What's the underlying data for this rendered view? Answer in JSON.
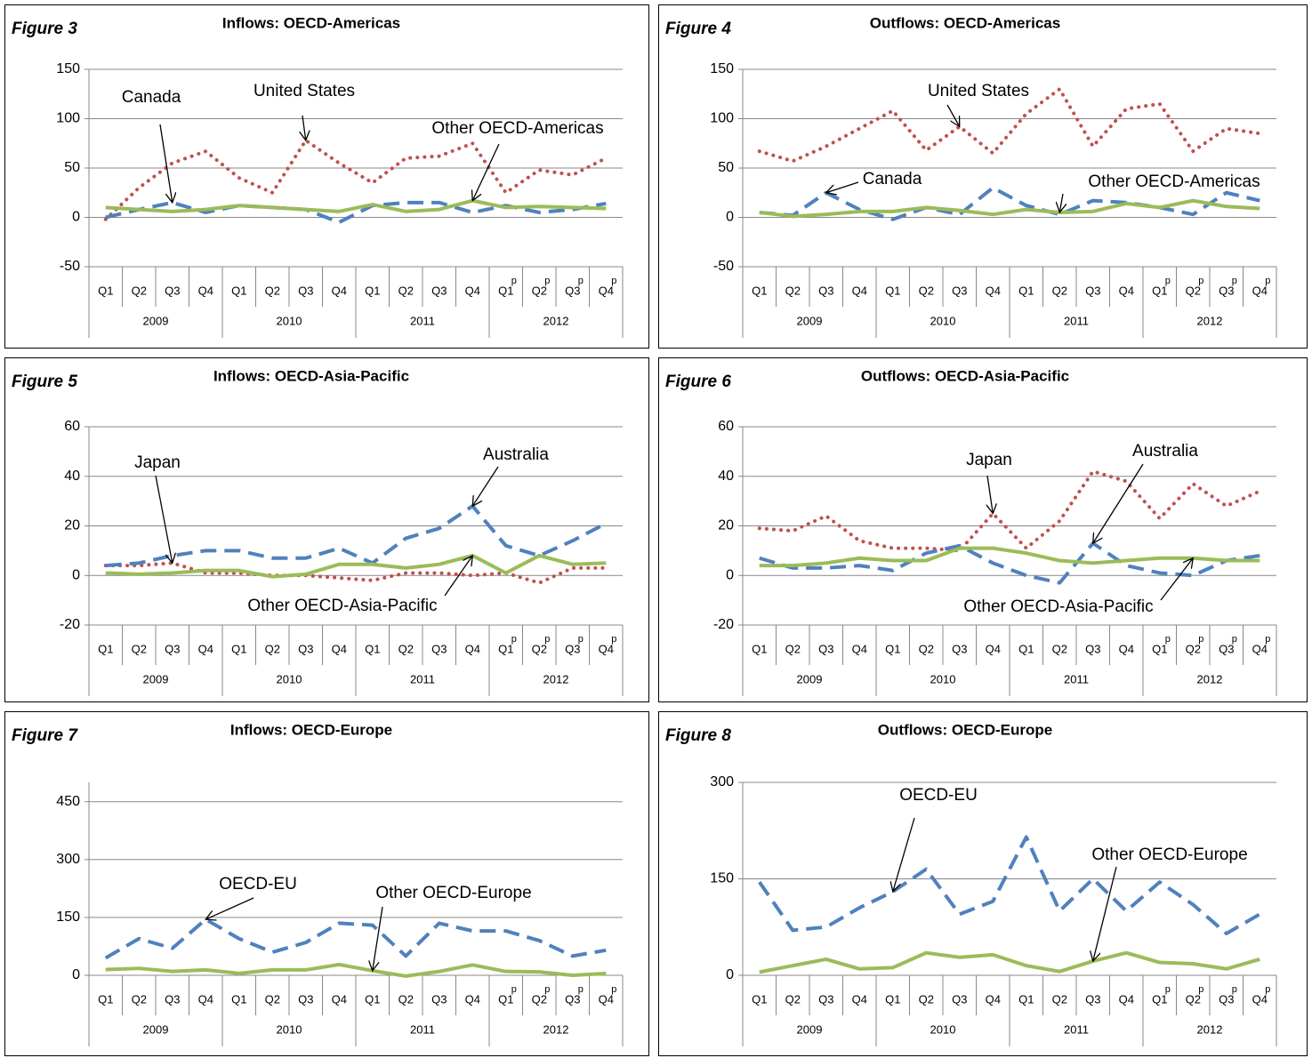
{
  "chart_data": [
    {
      "type": "line",
      "figure": "Figure 3",
      "title": "Inflows: OECD-Americas",
      "categories": [
        "Q1",
        "Q2",
        "Q3",
        "Q4",
        "Q1",
        "Q2",
        "Q3",
        "Q4",
        "Q1",
        "Q2",
        "Q3",
        "Q4",
        "Q1",
        "Q2",
        "Q3",
        "Q4"
      ],
      "category_notes": [
        null,
        null,
        null,
        null,
        null,
        null,
        null,
        null,
        null,
        null,
        null,
        null,
        "p",
        "p",
        "p",
        "p"
      ],
      "year_groups": [
        "2009",
        "2010",
        "2011",
        "2012"
      ],
      "ylim": [
        -50,
        150
      ],
      "yticks": [
        -50,
        0,
        50,
        100,
        150
      ],
      "grid": true,
      "series": [
        {
          "name": "United States",
          "color": "#c0504d",
          "style": "dotted",
          "values": [
            -2,
            30,
            55,
            67,
            40,
            25,
            78,
            55,
            35,
            60,
            62,
            75,
            25,
            48,
            43,
            60
          ]
        },
        {
          "name": "Canada",
          "color": "#4f81bd",
          "style": "dashed",
          "values": [
            0,
            8,
            15,
            5,
            12,
            10,
            8,
            -5,
            12,
            15,
            15,
            5,
            12,
            5,
            8,
            14
          ]
        },
        {
          "name": "Other OECD-Americas",
          "color": "#9bbb59",
          "style": "solid",
          "values": [
            10,
            8,
            6,
            8,
            12,
            10,
            8,
            6,
            13,
            6,
            8,
            17,
            10,
            11,
            10,
            9
          ]
        }
      ]
    },
    {
      "type": "line",
      "figure": "Figure 4",
      "title": "Outflows: OECD-Americas",
      "categories": [
        "Q1",
        "Q2",
        "Q3",
        "Q4",
        "Q1",
        "Q2",
        "Q3",
        "Q4",
        "Q1",
        "Q2",
        "Q3",
        "Q4",
        "Q1",
        "Q2",
        "Q3",
        "Q4"
      ],
      "category_notes": [
        null,
        null,
        null,
        null,
        null,
        null,
        null,
        null,
        null,
        null,
        null,
        null,
        "p",
        "p",
        "p",
        "p"
      ],
      "year_groups": [
        "2009",
        "2010",
        "2011",
        "2012"
      ],
      "ylim": [
        -50,
        150
      ],
      "yticks": [
        -50,
        0,
        50,
        100,
        150
      ],
      "grid": true,
      "series": [
        {
          "name": "United States",
          "color": "#c0504d",
          "style": "dotted",
          "values": [
            67,
            57,
            72,
            90,
            108,
            68,
            92,
            65,
            105,
            130,
            72,
            110,
            115,
            67,
            90,
            85
          ]
        },
        {
          "name": "Canada",
          "color": "#4f81bd",
          "style": "dashed",
          "values": [
            5,
            2,
            25,
            8,
            -2,
            10,
            3,
            30,
            12,
            3,
            17,
            15,
            10,
            3,
            25,
            17
          ]
        },
        {
          "name": "Other OECD-Americas",
          "color": "#9bbb59",
          "style": "solid",
          "values": [
            5,
            1,
            3,
            6,
            6,
            10,
            7,
            3,
            8,
            5,
            6,
            14,
            10,
            17,
            11,
            9
          ]
        }
      ]
    },
    {
      "type": "line",
      "figure": "Figure 5",
      "title": "Inflows: OECD-Asia-Pacific",
      "categories": [
        "Q1",
        "Q2",
        "Q3",
        "Q4",
        "Q1",
        "Q2",
        "Q3",
        "Q4",
        "Q1",
        "Q2",
        "Q3",
        "Q4",
        "Q1",
        "Q2",
        "Q3",
        "Q4"
      ],
      "category_notes": [
        null,
        null,
        null,
        null,
        null,
        null,
        null,
        null,
        null,
        null,
        null,
        null,
        "p",
        "p",
        "p",
        "p"
      ],
      "year_groups": [
        "2009",
        "2010",
        "2011",
        "2012"
      ],
      "ylim": [
        -20,
        60
      ],
      "yticks": [
        -20,
        0,
        20,
        40,
        60
      ],
      "grid": true,
      "series": [
        {
          "name": "Japan",
          "color": "#c0504d",
          "style": "dotted",
          "values": [
            4,
            4,
            5,
            1,
            1,
            0,
            0,
            -1,
            -2,
            1,
            1,
            0,
            1,
            -3,
            3,
            3
          ]
        },
        {
          "name": "Australia",
          "color": "#4f81bd",
          "style": "dashed",
          "values": [
            4,
            5,
            8,
            10,
            10,
            7,
            7,
            11,
            5,
            15,
            19,
            28,
            12,
            8,
            14,
            21
          ]
        },
        {
          "name": "Other OECD-Asia-Pacific",
          "color": "#9bbb59",
          "style": "solid",
          "values": [
            1,
            0.5,
            1,
            2,
            2,
            -0.5,
            0.5,
            4.5,
            4.5,
            3,
            4.5,
            8,
            1,
            8,
            4.5,
            5
          ]
        }
      ]
    },
    {
      "type": "line",
      "figure": "Figure 6",
      "title": "Outflows: OECD-Asia-Pacific",
      "categories": [
        "Q1",
        "Q2",
        "Q3",
        "Q4",
        "Q1",
        "Q2",
        "Q3",
        "Q4",
        "Q1",
        "Q2",
        "Q3",
        "Q4",
        "Q1",
        "Q2",
        "Q3",
        "Q4"
      ],
      "category_notes": [
        null,
        null,
        null,
        null,
        null,
        null,
        null,
        null,
        null,
        null,
        null,
        null,
        "p",
        "p",
        "p",
        "p"
      ],
      "year_groups": [
        "2009",
        "2010",
        "2011",
        "2012"
      ],
      "ylim": [
        -20,
        60
      ],
      "yticks": [
        -20,
        0,
        20,
        40,
        60
      ],
      "grid": true,
      "series": [
        {
          "name": "Japan",
          "color": "#c0504d",
          "style": "dotted",
          "values": [
            19,
            18,
            24,
            14,
            11,
            11,
            10,
            25,
            11,
            22,
            42,
            38,
            23,
            37,
            28,
            34
          ]
        },
        {
          "name": "Australia",
          "color": "#4f81bd",
          "style": "dashed",
          "values": [
            7,
            3,
            3,
            4,
            2,
            9,
            12,
            5,
            0,
            -3,
            13,
            4,
            1,
            0,
            6,
            8
          ]
        },
        {
          "name": "Other OECD-Asia-Pacific",
          "color": "#9bbb59",
          "style": "solid",
          "values": [
            4,
            4,
            5,
            7,
            6,
            6,
            11,
            11,
            9,
            6,
            5,
            6,
            7,
            7,
            6,
            6
          ]
        }
      ]
    },
    {
      "type": "line",
      "figure": "Figure 7",
      "title": "Inflows: OECD-Europe",
      "categories": [
        "Q1",
        "Q2",
        "Q3",
        "Q4",
        "Q1",
        "Q2",
        "Q3",
        "Q4",
        "Q1",
        "Q2",
        "Q3",
        "Q4",
        "Q1",
        "Q2",
        "Q3",
        "Q4"
      ],
      "category_notes": [
        null,
        null,
        null,
        null,
        null,
        null,
        null,
        null,
        null,
        null,
        null,
        null,
        "p",
        "p",
        "p",
        "p"
      ],
      "year_groups": [
        "2009",
        "2010",
        "2011",
        "2012"
      ],
      "ylim": [
        0,
        500
      ],
      "yticks": [
        0,
        150,
        300,
        450
      ],
      "grid": true,
      "series": [
        {
          "name": "OECD-EU",
          "color": "#4f81bd",
          "style": "dashed",
          "values": [
            45,
            95,
            70,
            145,
            95,
            60,
            85,
            135,
            130,
            50,
            135,
            115,
            115,
            90,
            50,
            65
          ]
        },
        {
          "name": "Other OECD-Europe",
          "color": "#9bbb59",
          "style": "solid",
          "values": [
            15,
            18,
            10,
            14,
            5,
            14,
            14,
            28,
            12,
            -2,
            10,
            27,
            10,
            9,
            0,
            5
          ]
        }
      ]
    },
    {
      "type": "line",
      "figure": "Figure 8",
      "title": "Outflows: OECD-Europe",
      "categories": [
        "Q1",
        "Q2",
        "Q3",
        "Q4",
        "Q1",
        "Q2",
        "Q3",
        "Q4",
        "Q1",
        "Q2",
        "Q3",
        "Q4",
        "Q1",
        "Q2",
        "Q3",
        "Q4"
      ],
      "category_notes": [
        null,
        null,
        null,
        null,
        null,
        null,
        null,
        null,
        null,
        null,
        null,
        null,
        "p",
        "p",
        "p",
        "p"
      ],
      "year_groups": [
        "2009",
        "2010",
        "2011",
        "2012"
      ],
      "ylim": [
        0,
        300
      ],
      "yticks": [
        0,
        150,
        300
      ],
      "grid": true,
      "series": [
        {
          "name": "OECD-EU",
          "color": "#4f81bd",
          "style": "dashed",
          "values": [
            145,
            70,
            75,
            105,
            130,
            165,
            95,
            115,
            215,
            100,
            150,
            100,
            145,
            110,
            65,
            95
          ]
        },
        {
          "name": "Other OECD-Europe",
          "color": "#9bbb59",
          "style": "solid",
          "values": [
            5,
            15,
            25,
            10,
            12,
            35,
            28,
            32,
            15,
            6,
            22,
            35,
            20,
            18,
            10,
            25
          ]
        }
      ]
    }
  ]
}
